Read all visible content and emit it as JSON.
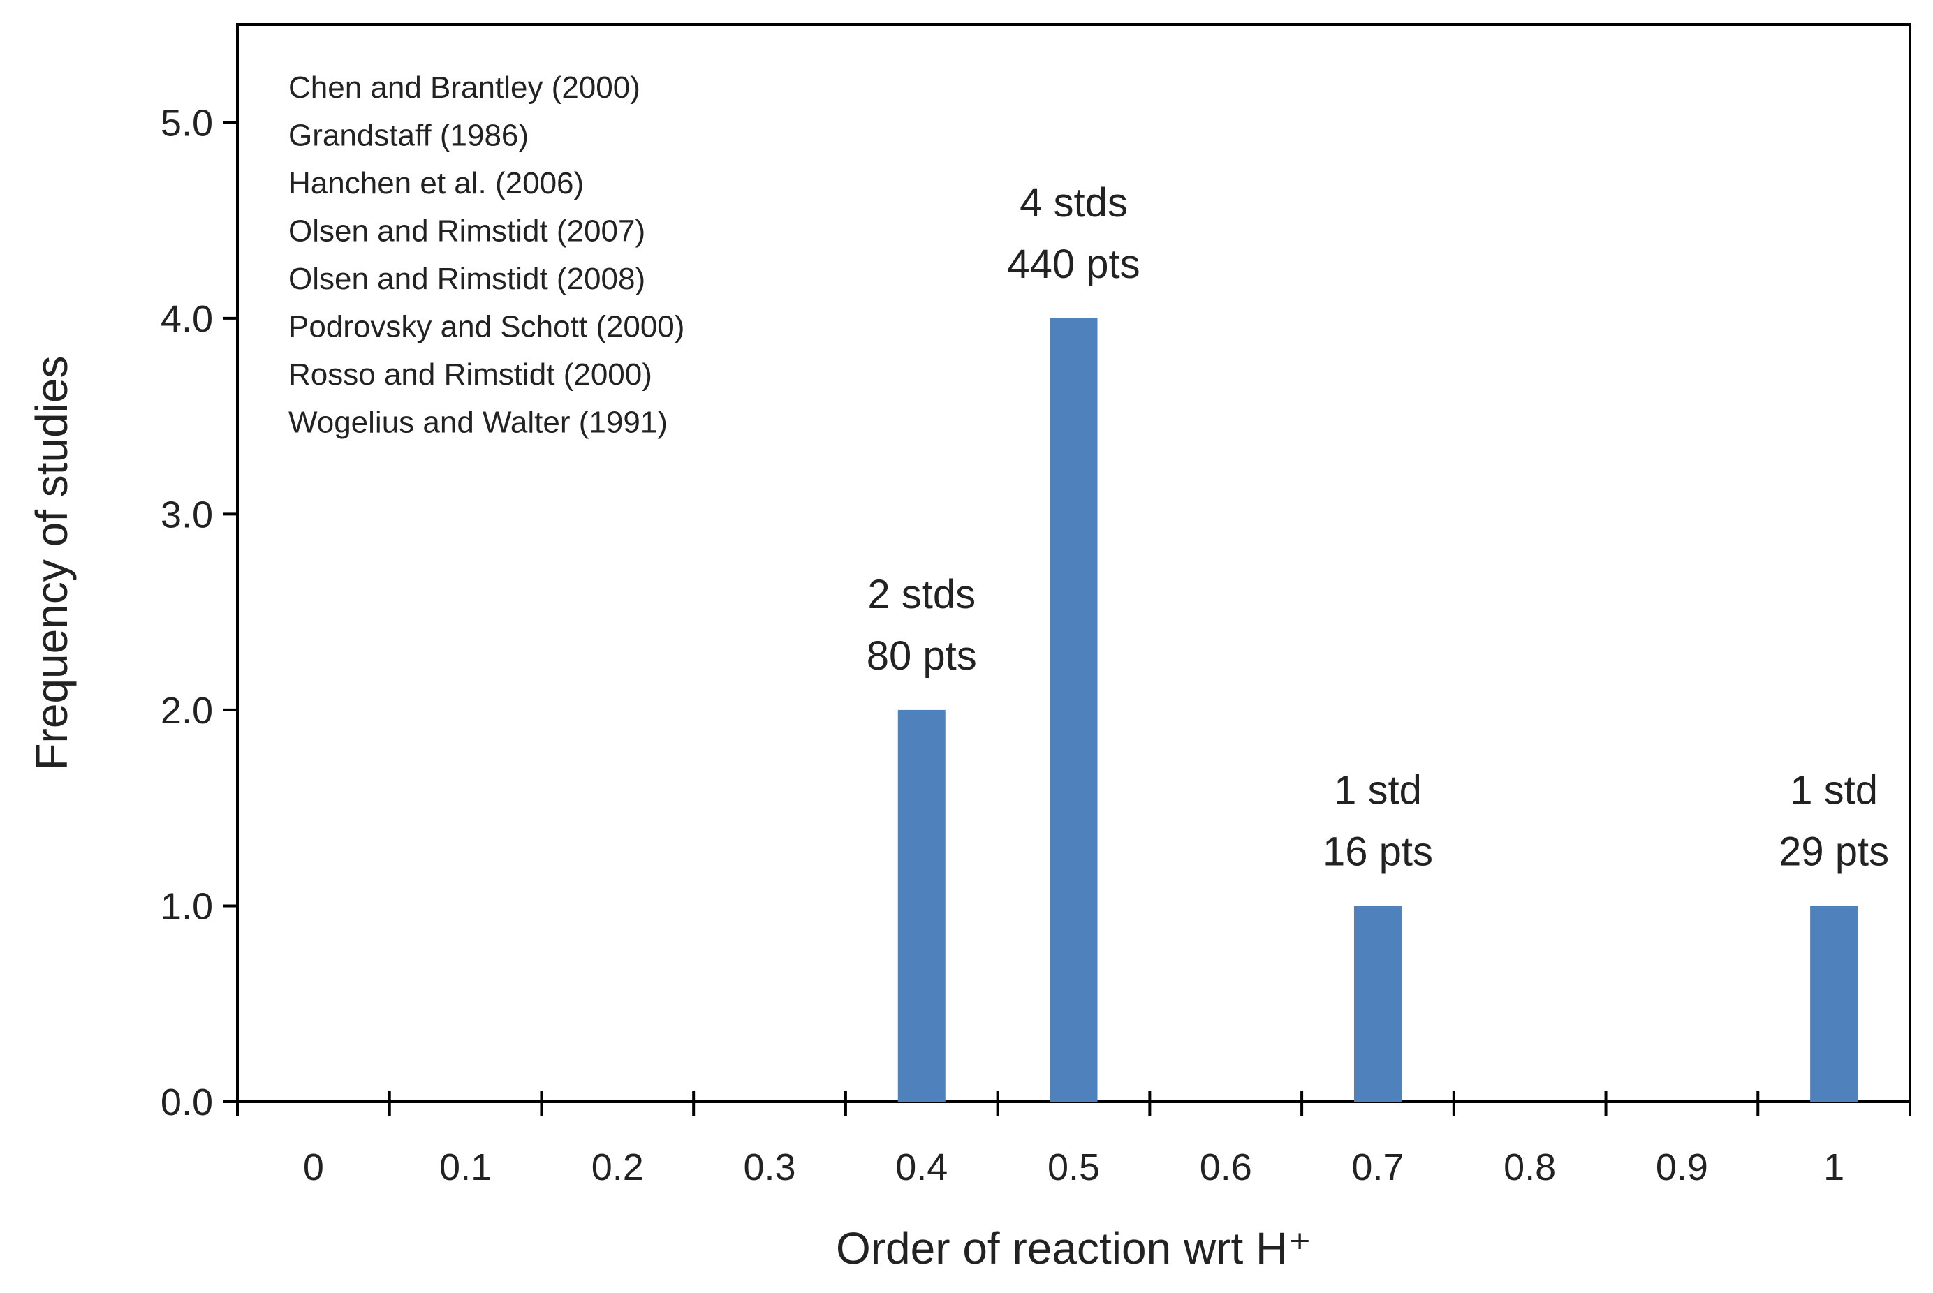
{
  "chart_data": {
    "type": "bar",
    "title": "",
    "xlabel": "Order of reaction wrt H⁺",
    "ylabel": "Frequency of studies",
    "ylim": [
      0,
      5.5
    ],
    "y_ticks": [
      0,
      1,
      2,
      3,
      4,
      5
    ],
    "y_tick_labels": [
      "0.0",
      "1.0",
      "2.0",
      "3.0",
      "4.0",
      "5.0"
    ],
    "categories": [
      "0",
      "0.1",
      "0.2",
      "0.3",
      "0.4",
      "0.5",
      "0.6",
      "0.7",
      "0.8",
      "0.9",
      "1"
    ],
    "values": [
      0,
      0,
      0,
      0,
      2,
      4,
      0,
      1,
      0,
      0,
      1
    ],
    "bar_color": "#4f81bd",
    "grid": false,
    "data_labels": [
      {
        "category": "0.4",
        "lines": [
          "2 stds",
          "80 pts"
        ]
      },
      {
        "category": "0.5",
        "lines": [
          "4 stds",
          "440 pts"
        ]
      },
      {
        "category": "0.7",
        "lines": [
          "1 std",
          "16 pts"
        ]
      },
      {
        "category": "1",
        "lines": [
          "1 std",
          "29 pts"
        ]
      }
    ],
    "annotation_placement": "top-left",
    "sources": [
      "Chen and Brantley (2000)",
      "Grandstaff (1986)",
      "Hanchen et al. (2006)",
      "Olsen and Rimstidt (2007)",
      "Olsen and Rimstidt (2008)",
      "Podrovsky and Schott (2000)",
      "Rosso and Rimstidt (2000)",
      "Wogelius and Walter (1991)"
    ]
  }
}
